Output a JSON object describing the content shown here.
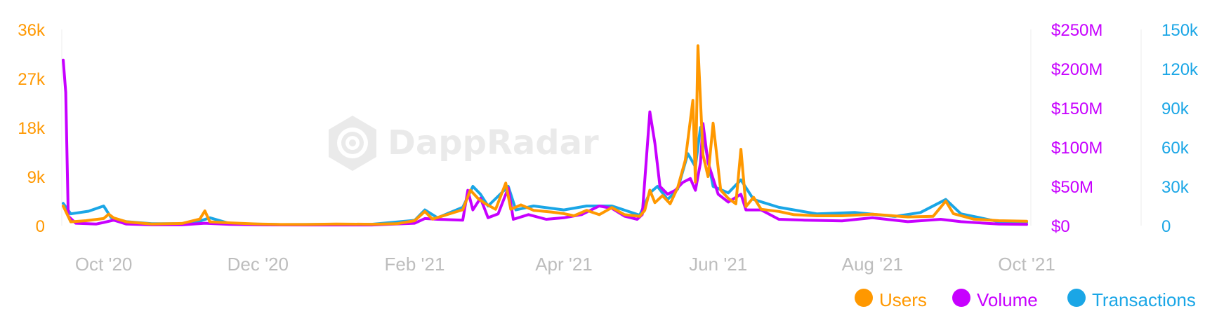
{
  "watermark": {
    "brand": "DappRadar"
  },
  "colors": {
    "users": "#ff9800",
    "volume": "#c700ff",
    "transactions": "#1aa6e6",
    "axis_tick": "#bdbdbd"
  },
  "chart_data": {
    "type": "line",
    "title": "",
    "x_ticks": [
      "Oct '20",
      "Dec '20",
      "Feb '21",
      "Apr '21",
      "Jun '21",
      "Aug '21",
      "Oct '21"
    ],
    "x_tick_dates": [
      "2020-10-01",
      "2020-12-01",
      "2021-02-01",
      "2021-04-01",
      "2021-06-01",
      "2021-08-01",
      "2021-10-01"
    ],
    "x_range": [
      "2020-09-15",
      "2021-10-01"
    ],
    "axes": {
      "users": {
        "side": "left",
        "ticks": [
          "0",
          "9k",
          "18k",
          "27k",
          "36k"
        ],
        "range": [
          0,
          36000
        ]
      },
      "volume": {
        "side": "right-inner",
        "ticks": [
          "$0",
          "$50M",
          "$100M",
          "$150M",
          "$200M",
          "$250M"
        ],
        "range": [
          0,
          250000000
        ]
      },
      "transactions": {
        "side": "right-outer",
        "ticks": [
          "0",
          "30k",
          "60k",
          "90k",
          "120k",
          "150k"
        ],
        "range": [
          0,
          150000
        ]
      }
    },
    "grid": false,
    "legend": {
      "position": "bottom-right",
      "entries": [
        "Users",
        "Volume",
        "Transactions"
      ]
    },
    "series": [
      {
        "name": "Users",
        "axis": "users",
        "points": [
          [
            "2020-09-15",
            3600
          ],
          [
            "2020-09-18",
            700
          ],
          [
            "2020-09-24",
            900
          ],
          [
            "2020-10-01",
            1300
          ],
          [
            "2020-10-03",
            2100
          ],
          [
            "2020-10-05",
            1400
          ],
          [
            "2020-10-10",
            700
          ],
          [
            "2020-10-20",
            300
          ],
          [
            "2020-11-01",
            400
          ],
          [
            "2020-11-08",
            1200
          ],
          [
            "2020-11-10",
            2700
          ],
          [
            "2020-11-12",
            700
          ],
          [
            "2020-11-20",
            500
          ],
          [
            "2020-12-01",
            300
          ],
          [
            "2020-12-10",
            200
          ],
          [
            "2020-12-20",
            200
          ],
          [
            "2021-01-01",
            300
          ],
          [
            "2021-01-15",
            250
          ],
          [
            "2021-01-25",
            350
          ],
          [
            "2021-02-01",
            900
          ],
          [
            "2021-02-05",
            2600
          ],
          [
            "2021-02-08",
            1200
          ],
          [
            "2021-02-20",
            2900
          ],
          [
            "2021-02-23",
            6500
          ],
          [
            "2021-02-26",
            5000
          ],
          [
            "2021-03-01",
            4000
          ],
          [
            "2021-03-05",
            3000
          ],
          [
            "2021-03-09",
            7800
          ],
          [
            "2021-03-11",
            3000
          ],
          [
            "2021-03-15",
            3800
          ],
          [
            "2021-03-20",
            2800
          ],
          [
            "2021-03-27",
            2500
          ],
          [
            "2021-04-01",
            2200
          ],
          [
            "2021-04-05",
            1800
          ],
          [
            "2021-04-10",
            2800
          ],
          [
            "2021-04-15",
            2000
          ],
          [
            "2021-04-20",
            3300
          ],
          [
            "2021-04-25",
            2000
          ],
          [
            "2021-05-01",
            1700
          ],
          [
            "2021-05-03",
            2800
          ],
          [
            "2021-05-05",
            6500
          ],
          [
            "2021-05-07",
            4200
          ],
          [
            "2021-05-10",
            5500
          ],
          [
            "2021-05-13",
            4000
          ],
          [
            "2021-05-16",
            7000
          ],
          [
            "2021-05-19",
            12000
          ],
          [
            "2021-05-22",
            23000
          ],
          [
            "2021-05-23",
            8000
          ],
          [
            "2021-05-24",
            33000
          ],
          [
            "2021-05-26",
            13000
          ],
          [
            "2021-05-28",
            9000
          ],
          [
            "2021-05-30",
            18800
          ],
          [
            "2021-06-02",
            6500
          ],
          [
            "2021-06-05",
            5000
          ],
          [
            "2021-06-08",
            4000
          ],
          [
            "2021-06-10",
            14000
          ],
          [
            "2021-06-12",
            3500
          ],
          [
            "2021-06-15",
            5200
          ],
          [
            "2021-06-18",
            3000
          ],
          [
            "2021-06-25",
            2600
          ],
          [
            "2021-07-01",
            2000
          ],
          [
            "2021-07-10",
            1800
          ],
          [
            "2021-07-20",
            1800
          ],
          [
            "2021-08-01",
            2100
          ],
          [
            "2021-08-15",
            1600
          ],
          [
            "2021-08-25",
            1700
          ],
          [
            "2021-08-30",
            4500
          ],
          [
            "2021-09-02",
            2200
          ],
          [
            "2021-09-10",
            1200
          ],
          [
            "2021-09-20",
            900
          ],
          [
            "2021-10-01",
            800
          ]
        ]
      },
      {
        "name": "Volume",
        "axis": "volume",
        "points": [
          [
            "2020-09-15",
            211000000
          ],
          [
            "2020-09-16",
            170000000
          ],
          [
            "2020-09-17",
            12000000
          ],
          [
            "2020-09-20",
            3000000
          ],
          [
            "2020-09-28",
            2000000
          ],
          [
            "2020-10-01",
            4000000
          ],
          [
            "2020-10-05",
            7000000
          ],
          [
            "2020-10-10",
            2000000
          ],
          [
            "2020-10-20",
            1000000
          ],
          [
            "2020-11-01",
            1000000
          ],
          [
            "2020-11-10",
            3000000
          ],
          [
            "2020-11-20",
            1500000
          ],
          [
            "2020-12-01",
            1000000
          ],
          [
            "2020-12-20",
            800000
          ],
          [
            "2021-01-15",
            800000
          ],
          [
            "2021-02-01",
            3000000
          ],
          [
            "2021-02-05",
            9000000
          ],
          [
            "2021-02-10",
            8000000
          ],
          [
            "2021-02-20",
            7000000
          ],
          [
            "2021-02-22",
            45000000
          ],
          [
            "2021-02-24",
            20000000
          ],
          [
            "2021-02-27",
            35000000
          ],
          [
            "2021-03-02",
            10000000
          ],
          [
            "2021-03-06",
            15000000
          ],
          [
            "2021-03-10",
            48000000
          ],
          [
            "2021-03-12",
            8000000
          ],
          [
            "2021-03-18",
            14000000
          ],
          [
            "2021-03-25",
            8000000
          ],
          [
            "2021-04-01",
            10000000
          ],
          [
            "2021-04-08",
            14000000
          ],
          [
            "2021-04-15",
            25000000
          ],
          [
            "2021-04-20",
            22000000
          ],
          [
            "2021-04-25",
            12000000
          ],
          [
            "2021-04-30",
            8000000
          ],
          [
            "2021-05-02",
            14000000
          ],
          [
            "2021-05-05",
            145000000
          ],
          [
            "2021-05-07",
            105000000
          ],
          [
            "2021-05-09",
            50000000
          ],
          [
            "2021-05-12",
            40000000
          ],
          [
            "2021-05-15",
            45000000
          ],
          [
            "2021-05-18",
            55000000
          ],
          [
            "2021-05-21",
            60000000
          ],
          [
            "2021-05-23",
            45000000
          ],
          [
            "2021-05-25",
            80000000
          ],
          [
            "2021-05-26",
            130000000
          ],
          [
            "2021-05-28",
            80000000
          ],
          [
            "2021-06-01",
            40000000
          ],
          [
            "2021-06-05",
            30000000
          ],
          [
            "2021-06-10",
            40000000
          ],
          [
            "2021-06-12",
            20000000
          ],
          [
            "2021-06-18",
            20000000
          ],
          [
            "2021-06-25",
            8000000
          ],
          [
            "2021-07-05",
            7000000
          ],
          [
            "2021-07-20",
            6000000
          ],
          [
            "2021-08-01",
            10000000
          ],
          [
            "2021-08-15",
            5000000
          ],
          [
            "2021-08-28",
            8000000
          ],
          [
            "2021-09-05",
            5000000
          ],
          [
            "2021-09-20",
            2000000
          ],
          [
            "2021-10-01",
            1500000
          ]
        ]
      },
      {
        "name": "Transactions",
        "axis": "transactions",
        "points": [
          [
            "2020-09-15",
            17000
          ],
          [
            "2020-09-18",
            9000
          ],
          [
            "2020-09-25",
            11000
          ],
          [
            "2020-10-01",
            15000
          ],
          [
            "2020-10-04",
            6000
          ],
          [
            "2020-10-10",
            3000
          ],
          [
            "2020-10-20",
            1500
          ],
          [
            "2020-11-05",
            1500
          ],
          [
            "2020-11-12",
            6000
          ],
          [
            "2020-11-20",
            1500
          ],
          [
            "2020-12-10",
            800
          ],
          [
            "2021-01-15",
            1000
          ],
          [
            "2021-02-01",
            4000
          ],
          [
            "2021-02-05",
            12000
          ],
          [
            "2021-02-10",
            6000
          ],
          [
            "2021-02-20",
            14000
          ],
          [
            "2021-02-24",
            30000
          ],
          [
            "2021-02-27",
            24000
          ],
          [
            "2021-03-02",
            15000
          ],
          [
            "2021-03-10",
            30000
          ],
          [
            "2021-03-13",
            12000
          ],
          [
            "2021-03-20",
            15000
          ],
          [
            "2021-04-01",
            12000
          ],
          [
            "2021-04-10",
            15000
          ],
          [
            "2021-04-20",
            15000
          ],
          [
            "2021-05-01",
            8000
          ],
          [
            "2021-05-05",
            25000
          ],
          [
            "2021-05-08",
            30000
          ],
          [
            "2021-05-12",
            20000
          ],
          [
            "2021-05-16",
            28000
          ],
          [
            "2021-05-20",
            55000
          ],
          [
            "2021-05-23",
            45000
          ],
          [
            "2021-05-25",
            75000
          ],
          [
            "2021-05-27",
            60000
          ],
          [
            "2021-05-30",
            30000
          ],
          [
            "2021-06-05",
            25000
          ],
          [
            "2021-06-10",
            35000
          ],
          [
            "2021-06-15",
            20000
          ],
          [
            "2021-06-25",
            14000
          ],
          [
            "2021-07-10",
            9000
          ],
          [
            "2021-07-25",
            10000
          ],
          [
            "2021-08-10",
            7000
          ],
          [
            "2021-08-20",
            10000
          ],
          [
            "2021-08-30",
            20000
          ],
          [
            "2021-09-05",
            9000
          ],
          [
            "2021-09-20",
            3000
          ],
          [
            "2021-10-01",
            2500
          ]
        ]
      }
    ]
  }
}
